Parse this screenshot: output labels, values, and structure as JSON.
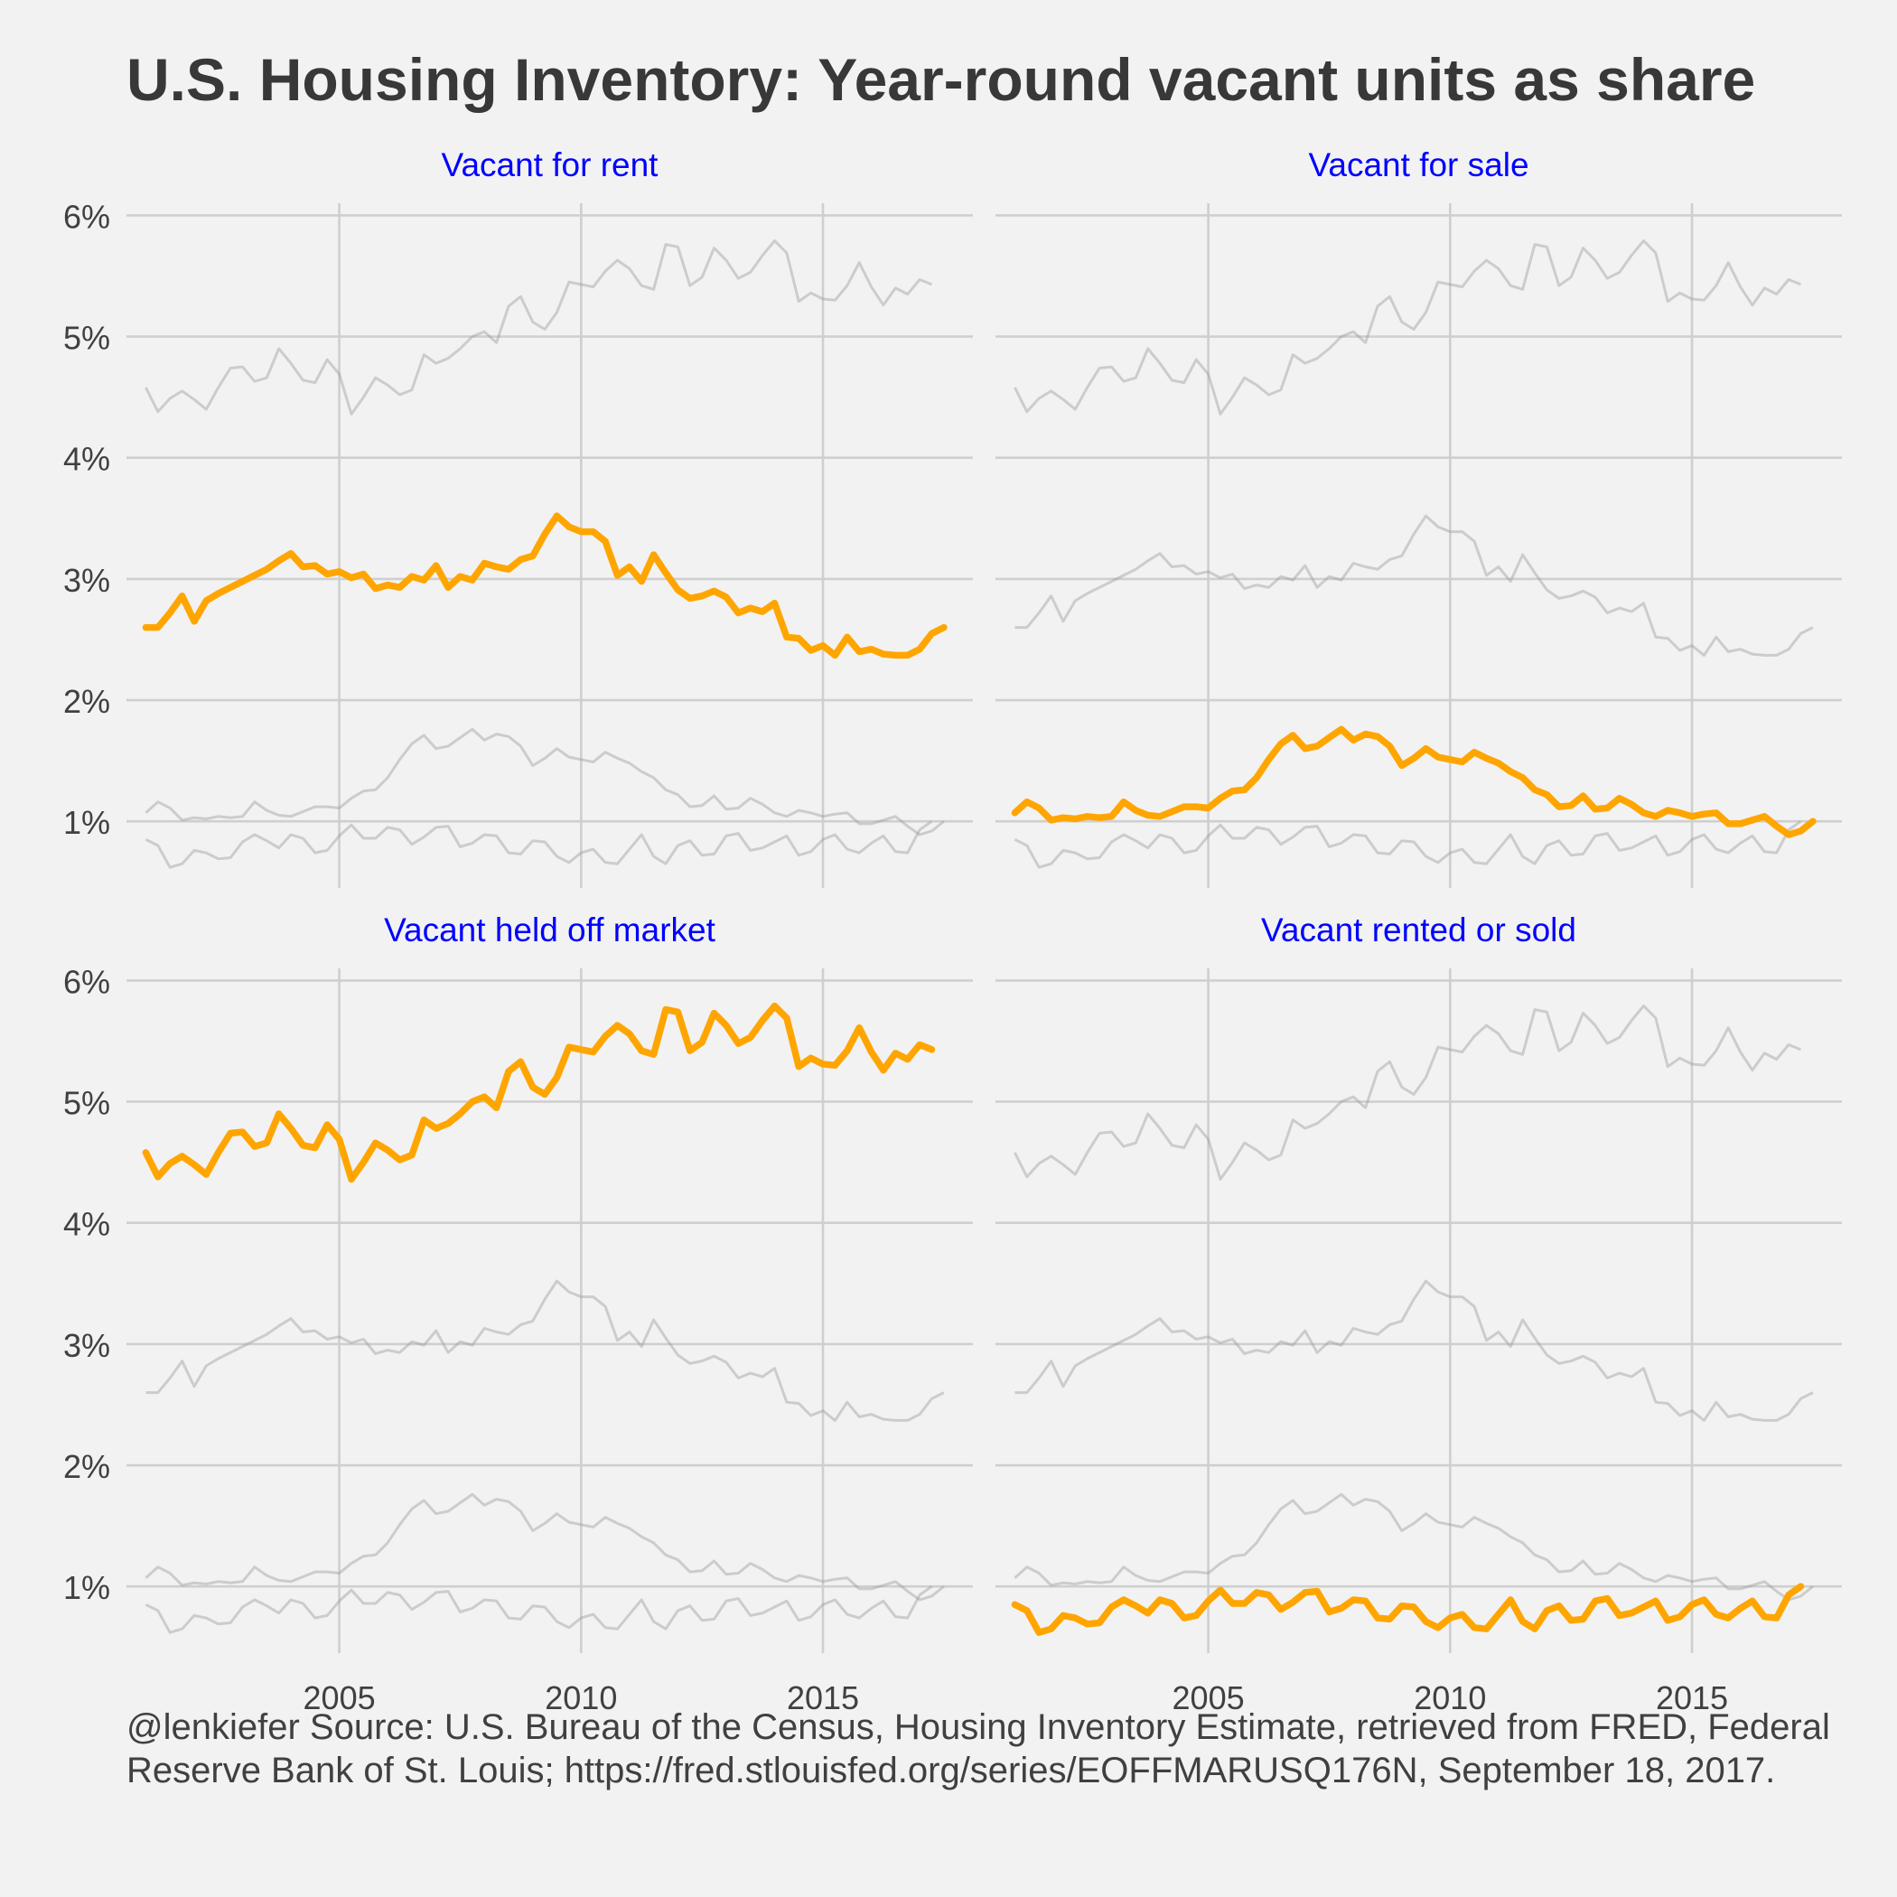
{
  "chart_data": {
    "type": "line",
    "title": "U.S. Housing Inventory: Year-round vacant units as share",
    "caption": "@lenkiefer Source: U.S. Bureau of the Census, Housing Inventory Estimate, retrieved from FRED, Federal Reserve Bank of St. Louis; https://fred.stlouisfed.org/series/EOFFMARUSQ176N, September 18, 2017.",
    "x_start": 2001.0,
    "x_step": 0.25,
    "xlim": [
      2000.6,
      2018.1
    ],
    "ylim": [
      0.45,
      6.1
    ],
    "x_ticks": [
      2005,
      2010,
      2015
    ],
    "x_tick_labels": [
      "2005",
      "2010",
      "2015"
    ],
    "y_ticks": [
      1,
      2,
      3,
      4,
      5,
      6
    ],
    "y_tick_labels": [
      "1%",
      "2%",
      "3%",
      "4%",
      "5%",
      "6%"
    ],
    "grid": true,
    "highlight_color": "#FFA500",
    "background_color": "#999999",
    "facet_title_color": "#0000FF",
    "series": [
      {
        "name": "Vacant for rent",
        "values": [
          2.6,
          2.6,
          2.72,
          2.86,
          2.65,
          2.82,
          2.88,
          2.93,
          2.98,
          3.03,
          3.08,
          3.15,
          3.21,
          3.1,
          3.11,
          3.04,
          3.06,
          3.01,
          3.04,
          2.92,
          2.95,
          2.93,
          3.02,
          2.99,
          3.11,
          2.93,
          3.02,
          2.99,
          3.13,
          3.1,
          3.08,
          3.16,
          3.19,
          3.37,
          3.52,
          3.43,
          3.39,
          3.39,
          3.31,
          3.03,
          3.1,
          2.98,
          3.2,
          3.05,
          2.91,
          2.84,
          2.86,
          2.9,
          2.85,
          2.72,
          2.76,
          2.73,
          2.8,
          2.52,
          2.51,
          2.41,
          2.45,
          2.37,
          2.52,
          2.4,
          2.42,
          2.38,
          2.37,
          2.37,
          2.42,
          2.55,
          2.6
        ]
      },
      {
        "name": "Vacant for sale",
        "values": [
          1.07,
          1.16,
          1.11,
          1.01,
          1.03,
          1.02,
          1.04,
          1.03,
          1.04,
          1.16,
          1.09,
          1.05,
          1.04,
          1.08,
          1.12,
          1.12,
          1.11,
          1.19,
          1.25,
          1.26,
          1.36,
          1.51,
          1.64,
          1.71,
          1.6,
          1.62,
          1.69,
          1.76,
          1.67,
          1.72,
          1.7,
          1.62,
          1.46,
          1.52,
          1.6,
          1.53,
          1.51,
          1.49,
          1.57,
          1.52,
          1.48,
          1.41,
          1.36,
          1.26,
          1.22,
          1.12,
          1.13,
          1.21,
          1.1,
          1.11,
          1.19,
          1.14,
          1.07,
          1.04,
          1.09,
          1.07,
          1.04,
          1.06,
          1.07,
          0.98,
          0.98,
          1.01,
          1.04,
          0.96,
          0.89,
          0.92,
          1.0
        ]
      },
      {
        "name": "Vacant held off market",
        "values": [
          4.58,
          4.38,
          4.49,
          4.55,
          4.48,
          4.4,
          4.58,
          4.74,
          4.75,
          4.63,
          4.66,
          4.9,
          4.78,
          4.64,
          4.62,
          4.81,
          4.69,
          4.36,
          4.5,
          4.66,
          4.6,
          4.52,
          4.56,
          4.85,
          4.78,
          4.82,
          4.9,
          5.0,
          5.04,
          4.95,
          5.25,
          5.33,
          5.12,
          5.06,
          5.2,
          5.45,
          5.43,
          5.41,
          5.54,
          5.63,
          5.56,
          5.42,
          5.39,
          5.76,
          5.74,
          5.42,
          5.49,
          5.73,
          5.63,
          5.48,
          5.53,
          5.67,
          5.79,
          5.69,
          5.29,
          5.36,
          5.31,
          5.3,
          5.42,
          5.61,
          5.41,
          5.26,
          5.4,
          5.35,
          5.47,
          5.43
        ]
      },
      {
        "name": "Vacant rented or sold",
        "values": [
          0.85,
          0.8,
          0.62,
          0.65,
          0.76,
          0.74,
          0.69,
          0.7,
          0.83,
          0.89,
          0.84,
          0.78,
          0.89,
          0.86,
          0.74,
          0.76,
          0.88,
          0.97,
          0.86,
          0.86,
          0.95,
          0.93,
          0.81,
          0.87,
          0.95,
          0.96,
          0.79,
          0.82,
          0.89,
          0.88,
          0.74,
          0.73,
          0.84,
          0.83,
          0.71,
          0.66,
          0.74,
          0.77,
          0.66,
          0.65,
          0.77,
          0.89,
          0.71,
          0.65,
          0.8,
          0.84,
          0.72,
          0.73,
          0.88,
          0.9,
          0.76,
          0.78,
          0.83,
          0.88,
          0.72,
          0.75,
          0.85,
          0.89,
          0.77,
          0.74,
          0.82,
          0.88,
          0.75,
          0.74,
          0.93,
          1.0
        ]
      }
    ]
  }
}
